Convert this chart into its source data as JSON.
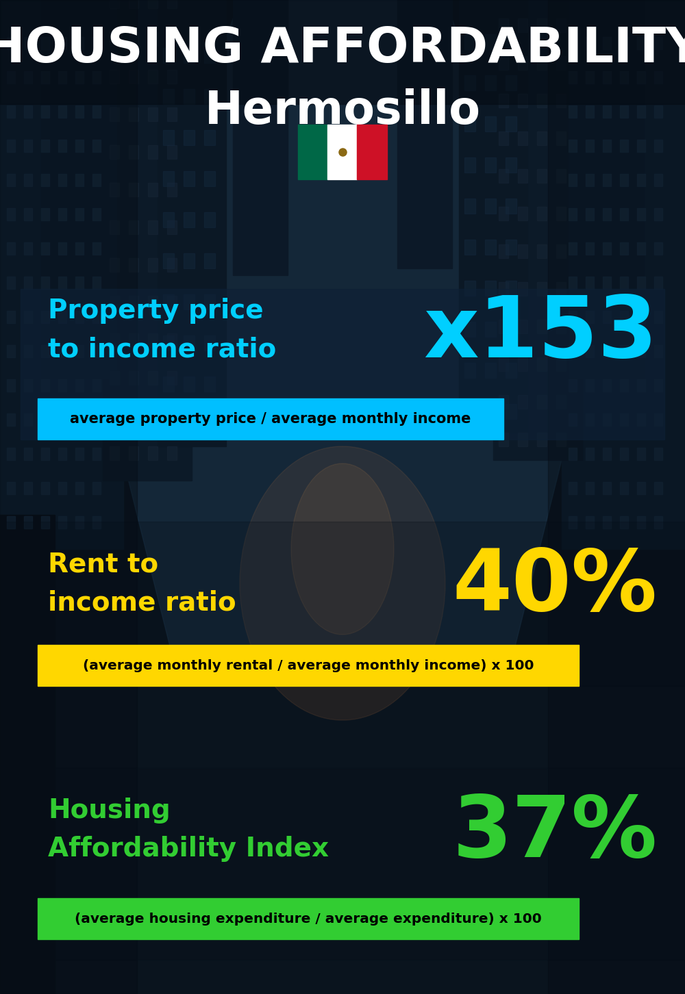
{
  "title_line1": "HOUSING AFFORDABILITY",
  "title_line2": "Hermosillo",
  "bg_color": "#0d1b2a",
  "section1_label": "Property price\nto income ratio",
  "section1_value": "x153",
  "section1_label_color": "#00cfff",
  "section1_value_color": "#00cfff",
  "section1_banner_text": "average property price / average monthly income",
  "section1_banner_bg": "#00bfff",
  "section1_banner_text_color": "#000000",
  "section2_label": "Rent to\nincome ratio",
  "section2_value": "40%",
  "section2_label_color": "#FFD700",
  "section2_value_color": "#FFD700",
  "section2_banner_text": "(average monthly rental / average monthly income) x 100",
  "section2_banner_bg": "#FFD700",
  "section2_banner_text_color": "#000000",
  "section3_label": "Housing\nAffordability Index",
  "section3_value": "37%",
  "section3_label_color": "#32CD32",
  "section3_value_color": "#32CD32",
  "section3_banner_text": "(average housing expenditure / average expenditure) x 100",
  "section3_banner_bg": "#32CD32",
  "section3_banner_text_color": "#000000",
  "mexico_flag_green": "#006847",
  "mexico_flag_white": "#FFFFFF",
  "mexico_flag_red": "#CE1126",
  "fig_width": 10.0,
  "fig_height": 14.52,
  "dpi": 100
}
